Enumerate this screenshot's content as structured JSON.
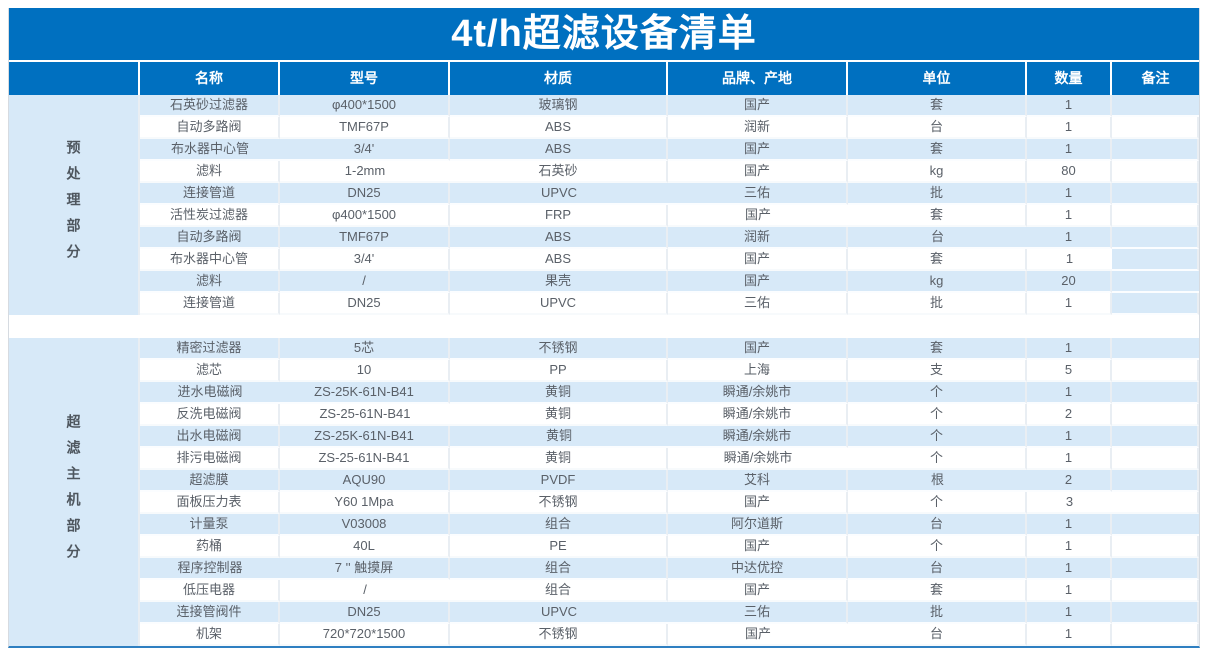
{
  "title": "4t/h超滤设备清单",
  "columns": [
    "名称",
    "型号",
    "材质",
    "品牌、产地",
    "单位",
    "数量",
    "备注"
  ],
  "colors": {
    "header_blue": "#0070c0",
    "banded_row_blue": "#d7e9f8",
    "bottom_border_blue": "#2e7fc1",
    "cell_text_gray": "#5a6068"
  },
  "sections": [
    {
      "label": "预处理部分",
      "rows": [
        {
          "name": "石英砂过滤器",
          "model": "φ400*1500",
          "material": "玻璃钢",
          "brand": "国产",
          "unit": "套",
          "qty": "1",
          "remark": "",
          "shaded": true,
          "remark_shaded": true
        },
        {
          "name": "自动多路阀",
          "model": "TMF67P",
          "material": "ABS",
          "brand": "润新",
          "unit": "台",
          "qty": "1",
          "remark": "",
          "shaded": false,
          "remark_shaded": false
        },
        {
          "name": "布水器中心管",
          "model": "3/4'",
          "material": "ABS",
          "brand": "国产",
          "unit": "套",
          "qty": "1",
          "remark": "",
          "shaded": true,
          "remark_shaded": true
        },
        {
          "name": "滤料",
          "model": "1-2mm",
          "material": "石英砂",
          "brand": "国产",
          "unit": "kg",
          "qty": "80",
          "remark": "",
          "shaded": false,
          "remark_shaded": false
        },
        {
          "name": "连接管道",
          "model": "DN25",
          "material": "UPVC",
          "brand": "三佑",
          "unit": "批",
          "qty": "1",
          "remark": "",
          "shaded": true,
          "remark_shaded": true
        },
        {
          "name": "活性炭过滤器",
          "model": "φ400*1500",
          "material": "FRP",
          "brand": "国产",
          "unit": "套",
          "qty": "1",
          "remark": "",
          "shaded": false,
          "remark_shaded": false
        },
        {
          "name": "自动多路阀",
          "model": "TMF67P",
          "material": "ABS",
          "brand": "润新",
          "unit": "台",
          "qty": "1",
          "remark": "",
          "shaded": true,
          "remark_shaded": true
        },
        {
          "name": "布水器中心管",
          "model": "3/4'",
          "material": "ABS",
          "brand": "国产",
          "unit": "套",
          "qty": "1",
          "remark": "",
          "shaded": false,
          "remark_shaded": true
        },
        {
          "name": "滤料",
          "model": "/",
          "material": "果壳",
          "brand": "国产",
          "unit": "kg",
          "qty": "20",
          "remark": "",
          "shaded": true,
          "remark_shaded": true
        },
        {
          "name": "连接管道",
          "model": "DN25",
          "material": "UPVC",
          "brand": "三佑",
          "unit": "批",
          "qty": "1",
          "remark": "",
          "shaded": false,
          "remark_shaded": true
        }
      ]
    },
    {
      "label": "超滤主机部分",
      "rows": [
        {
          "name": "精密过滤器",
          "model": "5芯",
          "material": "不锈钢",
          "brand": "国产",
          "unit": "套",
          "qty": "1",
          "remark": "",
          "shaded": true,
          "remark_shaded": true
        },
        {
          "name": "滤芯",
          "model": "10",
          "material": "PP",
          "brand": "上海",
          "unit": "支",
          "qty": "5",
          "remark": "",
          "shaded": false,
          "remark_shaded": false
        },
        {
          "name": "进水电磁阀",
          "model": "ZS-25K-61N-B41",
          "material": "黄铜",
          "brand": "瞬通/余姚市",
          "unit": "个",
          "qty": "1",
          "remark": "",
          "shaded": true,
          "remark_shaded": true
        },
        {
          "name": "反洗电磁阀",
          "model": "ZS-25-61N-B41",
          "material": "黄铜",
          "brand": "瞬通/余姚市",
          "unit": "个",
          "qty": "2",
          "remark": "",
          "shaded": false,
          "remark_shaded": false
        },
        {
          "name": "出水电磁阀",
          "model": "ZS-25K-61N-B41",
          "material": "黄铜",
          "brand": "瞬通/余姚市",
          "unit": "个",
          "qty": "1",
          "remark": "",
          "shaded": true,
          "remark_shaded": true
        },
        {
          "name": "排污电磁阀",
          "model": "ZS-25-61N-B41",
          "material": "黄铜",
          "brand": "瞬通/余姚市",
          "unit": "个",
          "qty": "1",
          "remark": "",
          "shaded": false,
          "remark_shaded": false
        },
        {
          "name": "超滤膜",
          "model": "AQU90",
          "material": "PVDF",
          "brand": "艾科",
          "unit": "根",
          "qty": "2",
          "remark": "",
          "shaded": true,
          "remark_shaded": true
        },
        {
          "name": "面板压力表",
          "model": "Y60 1Mpa",
          "material": "不锈钢",
          "brand": "国产",
          "unit": "个",
          "qty": "3",
          "remark": "",
          "shaded": false,
          "remark_shaded": false
        },
        {
          "name": "计量泵",
          "model": "V03008",
          "material": "组合",
          "brand": "阿尔道斯",
          "unit": "台",
          "qty": "1",
          "remark": "",
          "shaded": true,
          "remark_shaded": true
        },
        {
          "name": "药桶",
          "model": "40L",
          "material": "PE",
          "brand": "国产",
          "unit": "个",
          "qty": "1",
          "remark": "",
          "shaded": false,
          "remark_shaded": false
        },
        {
          "name": "程序控制器",
          "model": "7 '' 触摸屏",
          "material": "组合",
          "brand": "中达优控",
          "unit": "台",
          "qty": "1",
          "remark": "",
          "shaded": true,
          "remark_shaded": true
        },
        {
          "name": "低压电器",
          "model": "/",
          "material": "组合",
          "brand": "国产",
          "unit": "套",
          "qty": "1",
          "remark": "",
          "shaded": false,
          "remark_shaded": false
        },
        {
          "name": "连接管阀件",
          "model": "DN25",
          "material": "UPVC",
          "brand": "三佑",
          "unit": "批",
          "qty": "1",
          "remark": "",
          "shaded": true,
          "remark_shaded": true
        },
        {
          "name": "机架",
          "model": "720*720*1500",
          "material": "不锈钢",
          "brand": "国产",
          "unit": "台",
          "qty": "1",
          "remark": "",
          "shaded": false,
          "remark_shaded": false
        }
      ]
    }
  ]
}
